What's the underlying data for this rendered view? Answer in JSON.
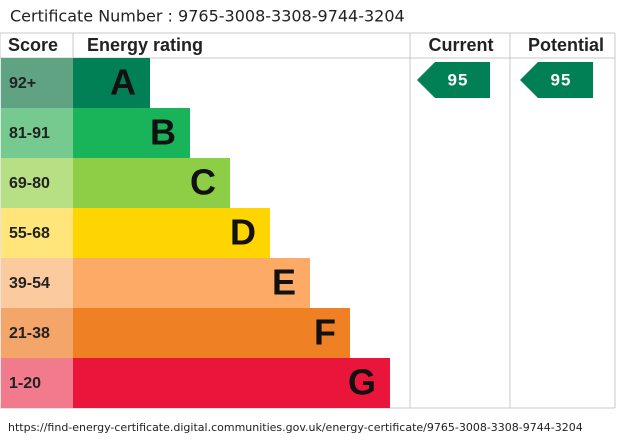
{
  "certificate": "Certificate Number : 9765-3008-3308-9744-3204",
  "headers": {
    "score": "Score",
    "rating": "Energy rating",
    "current": "Current",
    "potential": "Potential"
  },
  "bands": [
    {
      "score": "92+",
      "letter": "A",
      "color": "#008054",
      "score_color": "#5fa383"
    },
    {
      "score": "81-91",
      "letter": "B",
      "color": "#19b459",
      "score_color": "#76ca8f"
    },
    {
      "score": "69-80",
      "letter": "C",
      "color": "#8dce46",
      "score_color": "#b7df84"
    },
    {
      "score": "55-68",
      "letter": "D",
      "color": "#ffd500",
      "score_color": "#ffe57a"
    },
    {
      "score": "39-54",
      "letter": "E",
      "color": "#fcaa65",
      "score_color": "#fbcb9e"
    },
    {
      "score": "21-38",
      "letter": "F",
      "color": "#ef8023",
      "score_color": "#f3a56a"
    },
    {
      "score": "1-20",
      "letter": "G",
      "color": "#e9153b",
      "score_color": "#f27a8d"
    }
  ],
  "current": "95",
  "potential": "95",
  "url": "https://find-energy-certificate.digital.communities.gov.uk/energy-certificate/9765-3008-3308-9744-3204"
}
